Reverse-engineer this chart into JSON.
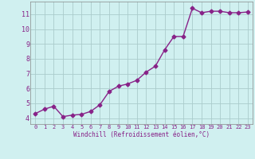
{
  "x": [
    0,
    1,
    2,
    3,
    4,
    5,
    6,
    7,
    8,
    9,
    10,
    11,
    12,
    13,
    14,
    15,
    16,
    17,
    18,
    19,
    20,
    21,
    22,
    23
  ],
  "y": [
    4.3,
    4.6,
    4.8,
    4.1,
    4.2,
    4.25,
    4.45,
    4.9,
    5.8,
    6.15,
    6.3,
    6.55,
    7.1,
    7.5,
    8.6,
    9.5,
    9.5,
    11.4,
    11.1,
    11.2,
    11.2,
    11.1,
    11.1,
    11.15
  ],
  "line_color": "#882288",
  "bg_color": "#d0f0f0",
  "grid_color": "#aacccc",
  "axis_color": "#882288",
  "xlabel": "Windchill (Refroidissement éolien,°C)",
  "xlim": [
    -0.5,
    23.5
  ],
  "ylim": [
    3.6,
    11.85
  ],
  "xticks": [
    0,
    1,
    2,
    3,
    4,
    5,
    6,
    7,
    8,
    9,
    10,
    11,
    12,
    13,
    14,
    15,
    16,
    17,
    18,
    19,
    20,
    21,
    22,
    23
  ],
  "yticks": [
    4,
    5,
    6,
    7,
    8,
    9,
    10,
    11
  ],
  "marker": "D",
  "marker_size": 2.5,
  "line_width": 1.0
}
